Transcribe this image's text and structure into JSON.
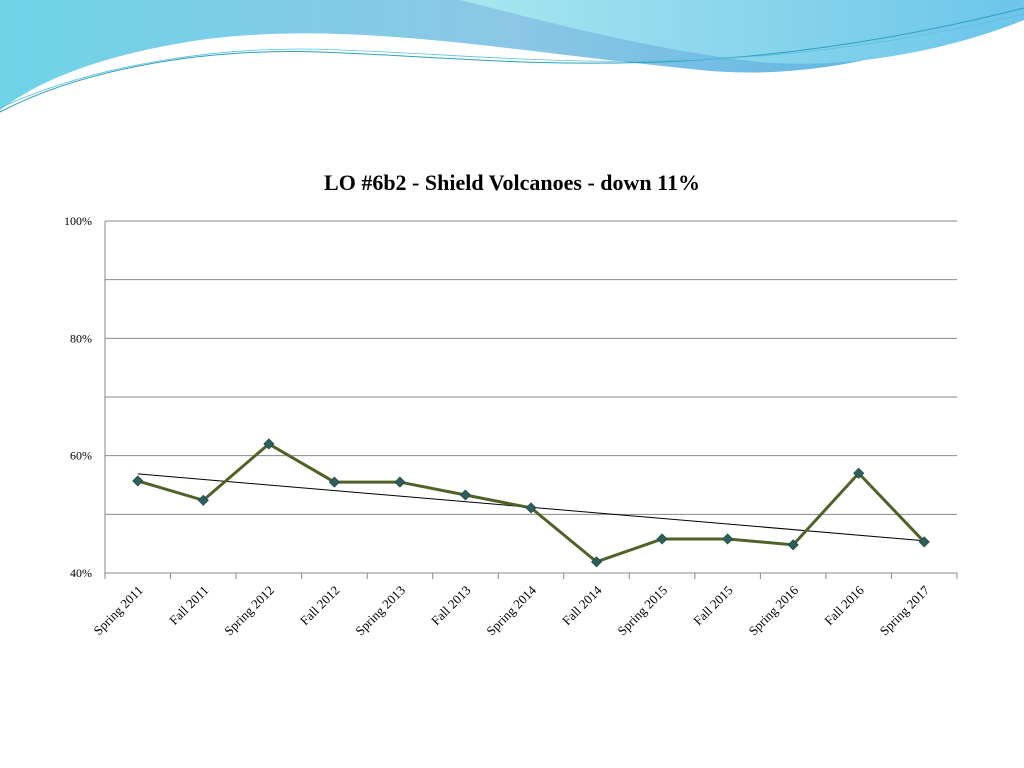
{
  "chart_data": {
    "type": "line",
    "title": "LO #6b2 - Shield Volcanoes - down 11%",
    "categories": [
      "Spring 2011",
      "Fall 2011",
      "Spring 2012",
      "Fall 2012",
      "Spring 2013",
      "Fall 2013",
      "Spring 2014",
      "Fall 2014",
      "Spring 2015",
      "Fall 2015",
      "Spring 2016",
      "Fall 2016",
      "Spring 2017"
    ],
    "series": [
      {
        "color": "#4f6228",
        "marker_color": "#2e5f5c",
        "values": [
          55.7,
          52.4,
          62,
          55.5,
          55.5,
          53.3,
          51.1,
          41.9,
          45.8,
          45.8,
          44.8,
          57,
          45.3
        ]
      }
    ],
    "trendline": {
      "color": "#000000",
      "values": [
        56.9,
        45.5
      ]
    },
    "ylim": [
      40,
      100
    ],
    "yticks": [
      {
        "value": 40,
        "label": "40%"
      },
      {
        "value": 60,
        "label": "60%"
      },
      {
        "value": 80,
        "label": "80%"
      },
      {
        "value": 100,
        "label": "100%"
      }
    ],
    "minor_yticks": [
      50,
      70,
      90
    ],
    "grid": true
  }
}
